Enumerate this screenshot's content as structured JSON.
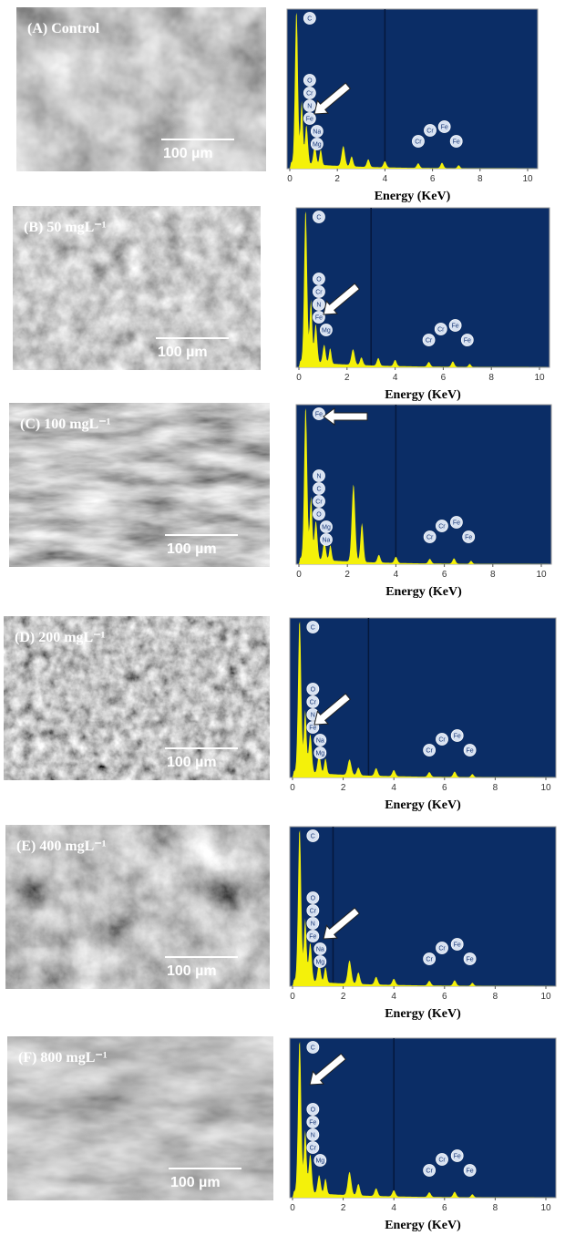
{
  "panels": [
    {
      "label": "(A) Control",
      "scale_bar": "100 µm",
      "spectrum": {
        "x_label": "Energy (KeV)",
        "xticks": [
          0,
          2,
          4,
          6,
          8,
          10
        ],
        "left_labels": [
          "C",
          "O",
          "Cr",
          "N",
          "Fe",
          "Na",
          "Mg"
        ],
        "right_labels": [
          "Cr",
          "Cr",
          "Fe",
          "Fe"
        ]
      }
    },
    {
      "label": "(B) 50 mgL⁻¹",
      "scale_bar": "100 µm",
      "spectrum": {
        "x_label": "Energy (KeV)",
        "xticks": [
          0,
          2,
          4,
          6,
          8,
          10
        ],
        "left_labels": [
          "C",
          "O",
          "Cr",
          "N",
          "Fe",
          "Mg"
        ],
        "right_labels": [
          "Cr",
          "Cr",
          "Fe",
          "Fe"
        ]
      }
    },
    {
      "label": "(C) 100 mgL⁻¹",
      "scale_bar": "100 µm",
      "spectrum": {
        "x_label": "Energy (KeV)",
        "xticks": [
          0,
          2,
          4,
          6,
          8,
          10
        ],
        "left_labels": [
          "Fe",
          "N",
          "C",
          "Cr",
          "O",
          "Mg",
          "Na"
        ],
        "right_labels": [
          "Cr",
          "Cr",
          "Fe",
          "Fe"
        ]
      }
    },
    {
      "label": "(D) 200 mgL⁻¹",
      "scale_bar": "100 µm",
      "spectrum": {
        "x_label": "Energy (KeV)",
        "xticks": [
          0,
          2,
          4,
          6,
          8,
          10
        ],
        "left_labels": [
          "C",
          "O",
          "Cr",
          "N",
          "Fe",
          "Na",
          "Mg"
        ],
        "right_labels": [
          "Cr",
          "Cr",
          "Fe",
          "Fe"
        ]
      }
    },
    {
      "label": "(E) 400 mgL⁻¹",
      "scale_bar": "100 µm",
      "spectrum": {
        "x_label": "Energy (KeV)",
        "xticks": [
          0,
          2,
          4,
          6,
          8,
          10
        ],
        "left_labels": [
          "C",
          "O",
          "Cr",
          "N",
          "Fe",
          "Na",
          "Mg"
        ],
        "right_labels": [
          "Cr",
          "Cr",
          "Fe",
          "Fe"
        ]
      }
    },
    {
      "label": "(F) 800 mgL⁻¹",
      "scale_bar": "100 µm",
      "spectrum": {
        "x_label": "Energy (KeV)",
        "xticks": [
          0,
          2,
          4,
          6,
          8,
          10
        ],
        "left_labels": [
          "C",
          "O",
          "Fe",
          "N",
          "Cr",
          "Mg"
        ],
        "right_labels": [
          "Cr",
          "Cr",
          "Fe",
          "Fe"
        ]
      }
    }
  ]
}
